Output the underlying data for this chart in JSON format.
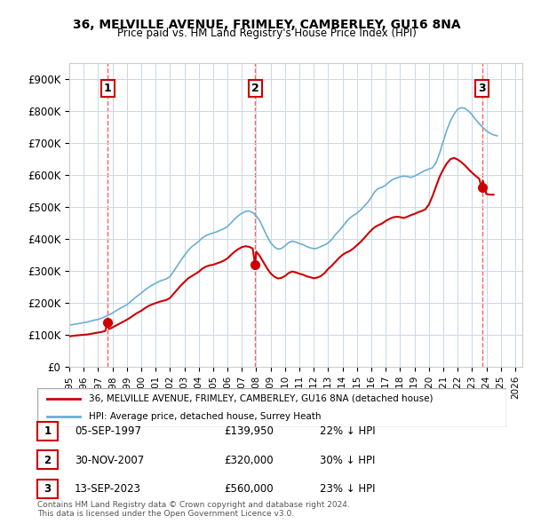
{
  "title": "36, MELVILLE AVENUE, FRIMLEY, CAMBERLEY, GU16 8NA",
  "subtitle": "Price paid vs. HM Land Registry's House Price Index (HPI)",
  "legend_line1": "36, MELVILLE AVENUE, FRIMLEY, CAMBERLEY, GU16 8NA (detached house)",
  "legend_line2": "HPI: Average price, detached house, Surrey Heath",
  "copyright": "Contains HM Land Registry data © Crown copyright and database right 2024.\nThis data is licensed under the Open Government Licence v3.0.",
  "sales": [
    {
      "num": 1,
      "date": "05-SEP-1997",
      "price": 139950,
      "pct": "22%",
      "x_year": 1997.67
    },
    {
      "num": 2,
      "date": "30-NOV-2007",
      "price": 320000,
      "pct": "30%",
      "x_year": 2007.92
    },
    {
      "num": 3,
      "date": "13-SEP-2023",
      "price": 560000,
      "pct": "23%",
      "x_year": 2023.7
    }
  ],
  "hpi_color": "#6baed6",
  "price_color": "#cc0000",
  "sale_dot_color": "#cc0000",
  "vline_color": "#ff4444",
  "ylim": [
    0,
    950000
  ],
  "xlim_start": 1995.0,
  "xlim_end": 2026.5,
  "yticks": [
    0,
    100000,
    200000,
    300000,
    400000,
    500000,
    600000,
    700000,
    800000,
    900000
  ],
  "ytick_labels": [
    "£0",
    "£100K",
    "£200K",
    "£300K",
    "£400K",
    "£500K",
    "£600K",
    "£700K",
    "£800K",
    "£900K"
  ],
  "xticks": [
    1995,
    1996,
    1997,
    1998,
    1999,
    2000,
    2001,
    2002,
    2003,
    2004,
    2005,
    2006,
    2007,
    2008,
    2009,
    2010,
    2011,
    2012,
    2013,
    2014,
    2015,
    2016,
    2017,
    2018,
    2019,
    2020,
    2021,
    2022,
    2023,
    2024,
    2025,
    2026
  ],
  "hpi_data_x": [
    1995.0,
    1995.25,
    1995.5,
    1995.75,
    1996.0,
    1996.25,
    1996.5,
    1996.75,
    1997.0,
    1997.25,
    1997.5,
    1997.75,
    1998.0,
    1998.25,
    1998.5,
    1998.75,
    1999.0,
    1999.25,
    1999.5,
    1999.75,
    2000.0,
    2000.25,
    2000.5,
    2000.75,
    2001.0,
    2001.25,
    2001.5,
    2001.75,
    2002.0,
    2002.25,
    2002.5,
    2002.75,
    2003.0,
    2003.25,
    2003.5,
    2003.75,
    2004.0,
    2004.25,
    2004.5,
    2004.75,
    2005.0,
    2005.25,
    2005.5,
    2005.75,
    2006.0,
    2006.25,
    2006.5,
    2006.75,
    2007.0,
    2007.25,
    2007.5,
    2007.75,
    2008.0,
    2008.25,
    2008.5,
    2008.75,
    2009.0,
    2009.25,
    2009.5,
    2009.75,
    2010.0,
    2010.25,
    2010.5,
    2010.75,
    2011.0,
    2011.25,
    2011.5,
    2011.75,
    2012.0,
    2012.25,
    2012.5,
    2012.75,
    2013.0,
    2013.25,
    2013.5,
    2013.75,
    2014.0,
    2014.25,
    2014.5,
    2014.75,
    2015.0,
    2015.25,
    2015.5,
    2015.75,
    2016.0,
    2016.25,
    2016.5,
    2016.75,
    2017.0,
    2017.25,
    2017.5,
    2017.75,
    2018.0,
    2018.25,
    2018.5,
    2018.75,
    2019.0,
    2019.25,
    2019.5,
    2019.75,
    2020.0,
    2020.25,
    2020.5,
    2020.75,
    2021.0,
    2021.25,
    2021.5,
    2021.75,
    2022.0,
    2022.25,
    2022.5,
    2022.75,
    2023.0,
    2023.25,
    2023.5,
    2023.75,
    2024.0,
    2024.25,
    2024.5,
    2024.75
  ],
  "hpi_data_y": [
    130000,
    132000,
    134000,
    136000,
    138000,
    140000,
    143000,
    146000,
    148000,
    152000,
    157000,
    162000,
    168000,
    175000,
    182000,
    188000,
    194000,
    203000,
    213000,
    222000,
    230000,
    240000,
    248000,
    255000,
    261000,
    267000,
    271000,
    275000,
    282000,
    298000,
    315000,
    332000,
    348000,
    363000,
    375000,
    383000,
    392000,
    403000,
    410000,
    415000,
    418000,
    422000,
    427000,
    432000,
    438000,
    450000,
    462000,
    472000,
    480000,
    486000,
    487000,
    482000,
    472000,
    456000,
    432000,
    408000,
    388000,
    375000,
    368000,
    370000,
    378000,
    388000,
    393000,
    390000,
    385000,
    382000,
    376000,
    372000,
    369000,
    371000,
    376000,
    381000,
    387000,
    398000,
    413000,
    425000,
    438000,
    453000,
    465000,
    473000,
    480000,
    490000,
    502000,
    514000,
    530000,
    548000,
    558000,
    561000,
    568000,
    578000,
    586000,
    590000,
    594000,
    596000,
    595000,
    592000,
    596000,
    602000,
    608000,
    614000,
    618000,
    622000,
    638000,
    668000,
    705000,
    740000,
    768000,
    790000,
    805000,
    810000,
    808000,
    800000,
    788000,
    773000,
    760000,
    748000,
    738000,
    730000,
    725000,
    722000
  ],
  "price_data_x": [
    1995.0,
    1995.25,
    1995.5,
    1995.75,
    1996.0,
    1996.25,
    1996.5,
    1996.75,
    1997.0,
    1997.25,
    1997.5,
    1997.67,
    1997.75,
    1998.0,
    1998.25,
    1998.5,
    1998.75,
    1999.0,
    1999.25,
    1999.5,
    1999.75,
    2000.0,
    2000.25,
    2000.5,
    2000.75,
    2001.0,
    2001.25,
    2001.5,
    2001.75,
    2002.0,
    2002.25,
    2002.5,
    2002.75,
    2003.0,
    2003.25,
    2003.5,
    2003.75,
    2004.0,
    2004.25,
    2004.5,
    2004.75,
    2005.0,
    2005.25,
    2005.5,
    2005.75,
    2006.0,
    2006.25,
    2006.5,
    2006.75,
    2007.0,
    2007.25,
    2007.5,
    2007.75,
    2007.92,
    2008.0,
    2008.25,
    2008.5,
    2008.75,
    2009.0,
    2009.25,
    2009.5,
    2009.75,
    2010.0,
    2010.25,
    2010.5,
    2010.75,
    2011.0,
    2011.25,
    2011.5,
    2011.75,
    2012.0,
    2012.25,
    2012.5,
    2012.75,
    2013.0,
    2013.25,
    2013.5,
    2013.75,
    2014.0,
    2014.25,
    2014.5,
    2014.75,
    2015.0,
    2015.25,
    2015.5,
    2015.75,
    2016.0,
    2016.25,
    2016.5,
    2016.75,
    2017.0,
    2017.25,
    2017.5,
    2017.75,
    2018.0,
    2018.25,
    2018.5,
    2018.75,
    2019.0,
    2019.25,
    2019.5,
    2019.75,
    2020.0,
    2020.25,
    2020.5,
    2020.75,
    2021.0,
    2021.25,
    2021.5,
    2021.75,
    2022.0,
    2022.25,
    2022.5,
    2022.75,
    2023.0,
    2023.25,
    2023.5,
    2023.67,
    2023.75,
    2024.0,
    2024.25,
    2024.5
  ],
  "price_data_y": [
    95000,
    97000,
    98000,
    99000,
    100000,
    101000,
    103000,
    105000,
    107000,
    109000,
    112000,
    139950,
    118000,
    123000,
    129000,
    135000,
    141000,
    147000,
    154000,
    162000,
    169000,
    175000,
    183000,
    190000,
    195000,
    199000,
    203000,
    206000,
    209000,
    215000,
    228000,
    241000,
    254000,
    265000,
    276000,
    283000,
    290000,
    297000,
    307000,
    313000,
    317000,
    319000,
    323000,
    327000,
    332000,
    339000,
    350000,
    360000,
    368000,
    374000,
    377000,
    375000,
    370000,
    320000,
    360000,
    346000,
    327000,
    308000,
    292000,
    282000,
    276000,
    278000,
    284000,
    293000,
    298000,
    295000,
    291000,
    288000,
    283000,
    280000,
    277000,
    279000,
    284000,
    293000,
    306000,
    316000,
    328000,
    340000,
    350000,
    357000,
    362000,
    370000,
    380000,
    390000,
    402000,
    415000,
    427000,
    437000,
    443000,
    448000,
    456000,
    462000,
    467000,
    469000,
    468000,
    465000,
    469000,
    474000,
    478000,
    483000,
    487000,
    492000,
    507000,
    533000,
    564000,
    594000,
    617000,
    636000,
    649000,
    653000,
    648000,
    640000,
    630000,
    618000,
    607000,
    597000,
    588000,
    560000,
    582000,
    540000,
    538000,
    538000
  ]
}
